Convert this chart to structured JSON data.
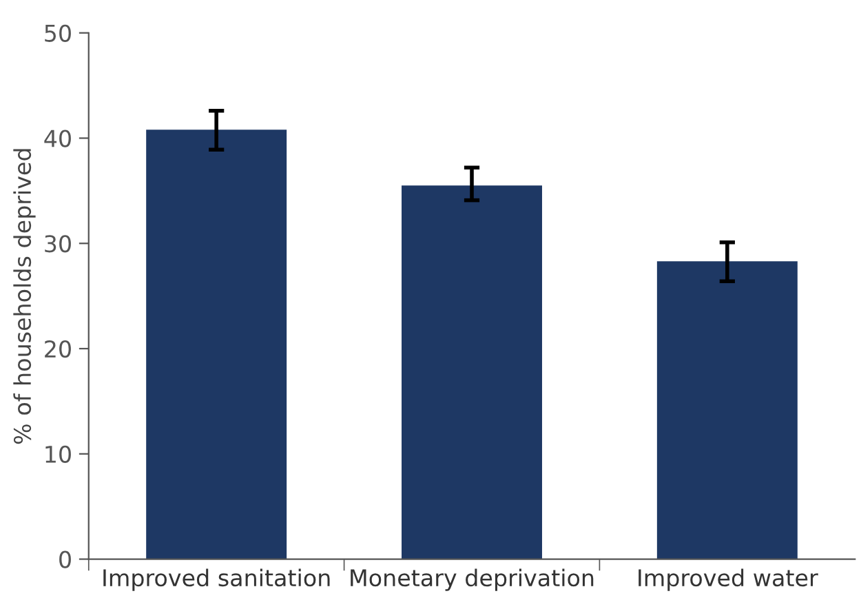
{
  "chart_data": {
    "type": "bar",
    "ylabel": "% of households deprived",
    "categories": [
      "Improved sanitation",
      "Monetary deprivation",
      "Improved water"
    ],
    "values": [
      40.8,
      35.5,
      28.3
    ],
    "errors": [
      [
        38.9,
        42.6
      ],
      [
        34.1,
        37.2
      ],
      [
        26.4,
        30.1
      ]
    ],
    "color": "#1e3864",
    "ylim": [
      0,
      50
    ],
    "yticks": [
      0,
      10,
      20,
      30,
      40,
      50
    ],
    "grid": false
  }
}
